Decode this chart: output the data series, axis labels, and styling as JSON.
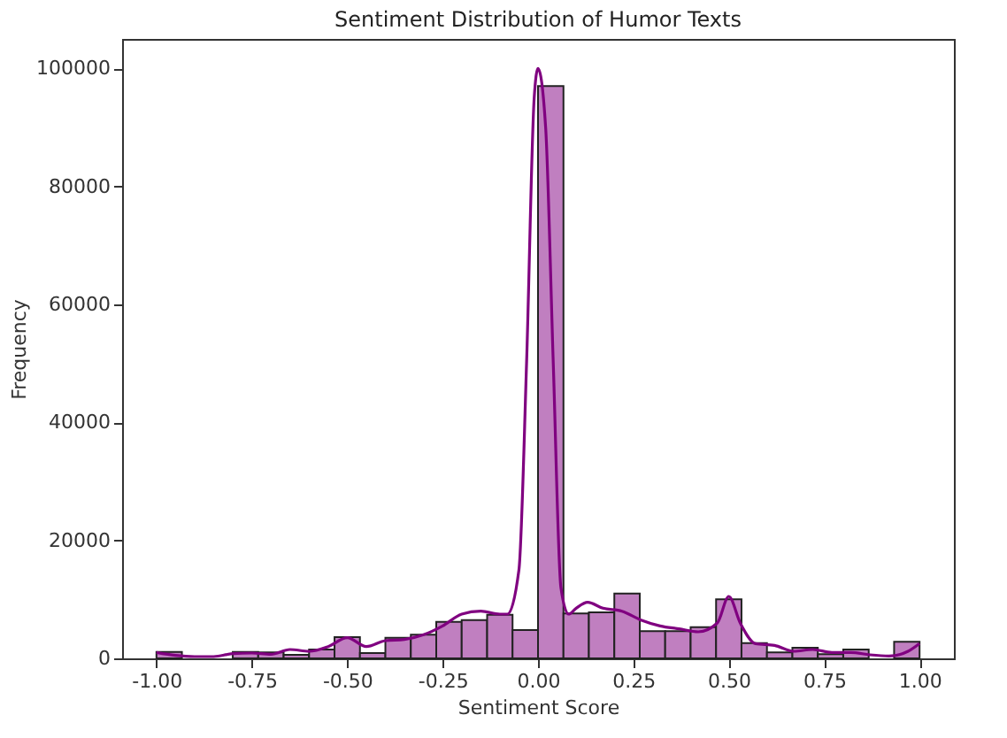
{
  "chart_data": {
    "type": "histogram",
    "title": "Sentiment Distribution of Humor Texts",
    "xlabel": "Sentiment Score",
    "ylabel": "Frequency",
    "bins": [
      -1,
      -0.9333,
      -0.8667,
      -0.8,
      -0.7333,
      -0.6667,
      -0.6,
      -0.5333,
      -0.4667,
      -0.4,
      -0.3333,
      -0.2667,
      -0.2,
      -0.1333,
      -0.0667,
      0,
      0.0667,
      0.1333,
      0.2,
      0.2667,
      0.3333,
      0.4,
      0.4667,
      0.5333,
      0.6,
      0.6667,
      0.7333,
      0.8,
      0.8667,
      0.9333,
      1
    ],
    "values": [
      1100,
      null,
      null,
      1100,
      1000,
      600,
      1500,
      3600,
      900,
      3500,
      4000,
      6200,
      6500,
      7400,
      4800,
      97000,
      7600,
      7800,
      11000,
      4600,
      4600,
      5300,
      10000,
      2600,
      1000,
      1800,
      700,
      1500,
      null,
      2800
    ],
    "color": "#c07fc0",
    "series": [
      {
        "type": "line",
        "color": "#800080",
        "x": [
          -1,
          -0.95,
          -0.9,
          -0.85,
          -0.8,
          -0.75,
          -0.7,
          -0.65,
          -0.6,
          -0.55,
          -0.5,
          -0.45,
          -0.4,
          -0.35,
          -0.3,
          -0.25,
          -0.2,
          -0.15,
          -0.1,
          -0.08,
          -0.05,
          -0.03,
          -0.01,
          0,
          0.02,
          0.04,
          0.06,
          0.08,
          0.1,
          0.13,
          0.17,
          0.22,
          0.27,
          0.32,
          0.37,
          0.42,
          0.47,
          0.5,
          0.53,
          0.57,
          0.62,
          0.67,
          0.72,
          0.77,
          0.82,
          0.87,
          0.92,
          0.97,
          1
        ],
        "values": [
          1000,
          500,
          300,
          300,
          800,
          900,
          700,
          1500,
          1200,
          2000,
          3500,
          2000,
          3000,
          3200,
          4000,
          5500,
          7500,
          8000,
          7500,
          7500,
          15000,
          50000,
          95000,
          100000,
          90000,
          50000,
          12000,
          7500,
          8500,
          9500,
          8500,
          8000,
          6500,
          5500,
          5000,
          4500,
          6000,
          10500,
          6000,
          2500,
          2200,
          1200,
          1500,
          1000,
          1000,
          600,
          400,
          1200,
          2500
        ]
      }
    ],
    "xlim": [
      -1.09,
      1.09
    ],
    "xticks": [
      {
        "value": -1,
        "label": "-1.00"
      },
      {
        "value": -0.75,
        "label": "-0.75"
      },
      {
        "value": -0.5,
        "label": "-0.50"
      },
      {
        "value": -0.25,
        "label": "-0.25"
      },
      {
        "value": 0,
        "label": "0.00"
      },
      {
        "value": 0.25,
        "label": "0.25"
      },
      {
        "value": 0.5,
        "label": "0.50"
      },
      {
        "value": 0.75,
        "label": "0.75"
      },
      {
        "value": 1,
        "label": "1.00"
      }
    ],
    "ylim": [
      0,
      105000
    ],
    "yticks": [
      0,
      20000,
      40000,
      60000,
      80000,
      100000
    ],
    "grid": false
  }
}
